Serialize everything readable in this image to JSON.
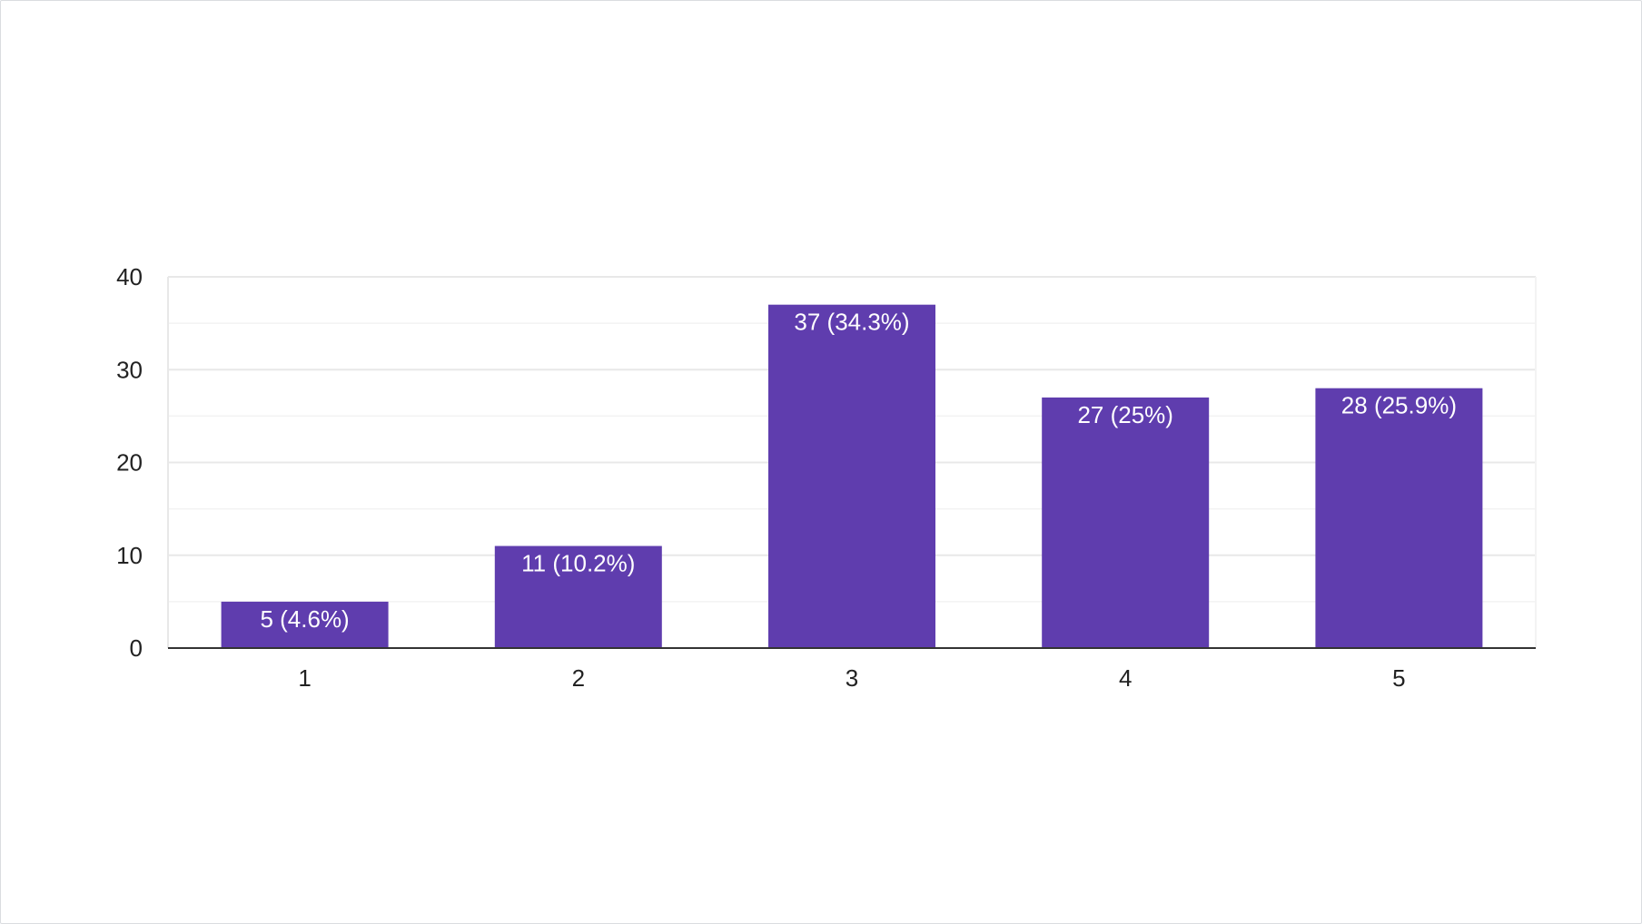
{
  "chart_data": {
    "type": "bar",
    "categories": [
      "1",
      "2",
      "3",
      "4",
      "5"
    ],
    "values": [
      5,
      11,
      37,
      27,
      28
    ],
    "data_labels": [
      "5 (4.6%)",
      "11 (10.2%)",
      "37 (34.3%)",
      "27 (25%)",
      "28 (25.9%)"
    ],
    "y_ticks": [
      0,
      10,
      20,
      30,
      40
    ],
    "ylim": [
      0,
      40
    ],
    "grid": true,
    "legend": "none",
    "colors": {
      "bar": "#5f3dae",
      "grid_major": "#e8e8e8",
      "grid_minor": "#f3f3f3",
      "axis": "#333333",
      "label_text": "#ffffff",
      "tick_text": "#222222"
    }
  }
}
